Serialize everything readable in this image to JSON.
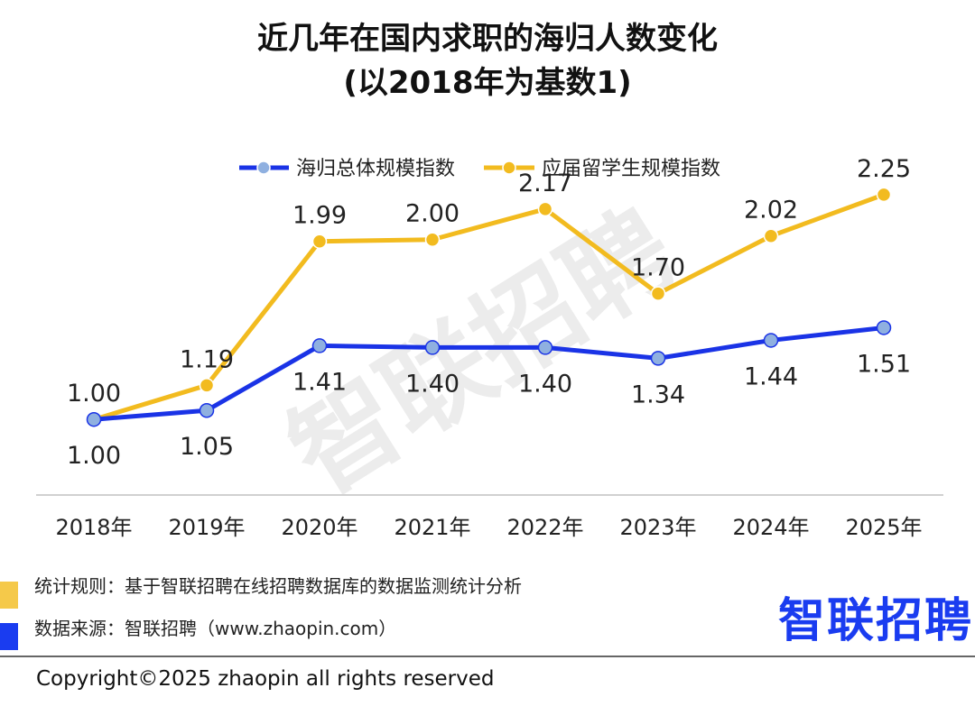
{
  "chart_data": {
    "type": "line",
    "title": "近几年在国内求职的海归人数变化",
    "subtitle": "(以2018年为基数1)",
    "categories": [
      "2018年",
      "2019年",
      "2020年",
      "2021年",
      "2022年",
      "2023年",
      "2024年",
      "2025年"
    ],
    "series": [
      {
        "name": "海归总体规模指数",
        "color": "#1a33e6",
        "marker_fill": "#8fb0e0",
        "values": [
          1.0,
          1.05,
          1.41,
          1.4,
          1.4,
          1.34,
          1.44,
          1.51
        ],
        "labels": [
          "1.00",
          "1.05",
          "1.41",
          "1.40",
          "1.40",
          "1.34",
          "1.44",
          "1.51"
        ]
      },
      {
        "name": "应届留学生规模指数",
        "color": "#f2bb1f",
        "marker_fill": "#f2bb1f",
        "values": [
          1.0,
          1.19,
          1.99,
          2.0,
          2.17,
          1.7,
          2.02,
          2.25
        ],
        "labels": [
          "1.00",
          "1.19",
          "1.99",
          "2.00",
          "2.17",
          "1.70",
          "2.02",
          "2.25"
        ]
      }
    ],
    "ylim": [
      0.58,
      2.53
    ],
    "grid": false,
    "legend_position": "top-center",
    "xlabel": "",
    "ylabel": ""
  },
  "watermark": "智联招聘",
  "footer": {
    "rule_label": "统计规则：",
    "rule_text": "基于智联招聘在线招聘数据库的数据监测统计分析",
    "source_label": "数据来源：",
    "source_text": "智联招聘（www.zhaopin.com）",
    "copyright": "Copyright©2025 zhaopin all rights reserved",
    "logo": "智联招聘",
    "swatch_colors": [
      "#f5c94a",
      "#1a3cf0"
    ]
  }
}
